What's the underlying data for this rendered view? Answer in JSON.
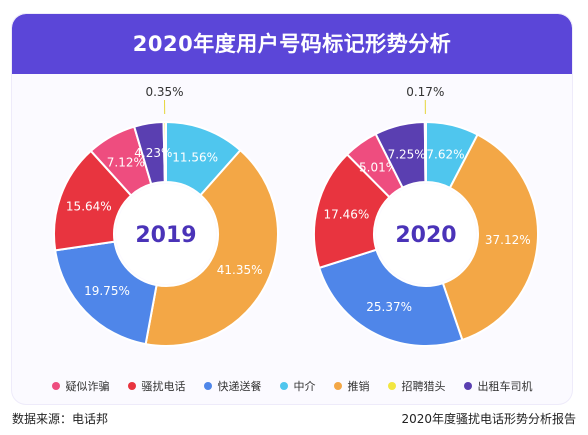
{
  "title": "2020年度用户号码标记形势分析",
  "source": "数据来源：电话邦",
  "report": "2020年度骚扰电话形势分析报告",
  "chart_data": {
    "type": "pie",
    "categories": [
      "疑似诈骗",
      "骚扰电话",
      "快递送餐",
      "中介",
      "推销",
      "招聘猎头",
      "出租车司机"
    ],
    "colors": [
      "#ee4d7f",
      "#e8343f",
      "#4f86e9",
      "#4fc6ee",
      "#f3a746",
      "#f2e641",
      "#5a3fb1"
    ],
    "charts": [
      {
        "label": "2019",
        "values": [
          7.12,
          15.64,
          19.75,
          11.56,
          41.35,
          0.35,
          4.23
        ],
        "value_labels": [
          "7.12%",
          "15.64%",
          "19.75%",
          "11.56%",
          "41.35%",
          "0.35%",
          "4.23%"
        ]
      },
      {
        "label": "2020",
        "values": [
          5.01,
          17.46,
          25.37,
          7.62,
          37.12,
          0.17,
          7.25
        ],
        "value_labels": [
          "5.01%",
          "17.46%",
          "25.37%",
          "7.62%",
          "37.12%",
          "0.17%",
          "7.25%"
        ]
      }
    ],
    "order": [
      3,
      4,
      2,
      1,
      0,
      6,
      5
    ]
  }
}
